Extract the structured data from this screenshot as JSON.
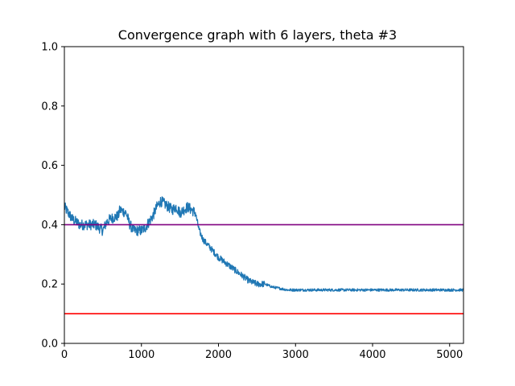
{
  "chart_data": {
    "type": "line",
    "title": "Convergence graph with 6 layers, theta #3",
    "xlabel": "",
    "ylabel": "",
    "xlim": [
      0,
      5180
    ],
    "ylim": [
      0,
      1.0
    ],
    "grid": false,
    "x_ticks": [
      0,
      1000,
      2000,
      3000,
      4000,
      5000
    ],
    "x_tick_labels": [
      "0",
      "1000",
      "2000",
      "3000",
      "4000",
      "5000"
    ],
    "y_ticks": [
      0.0,
      0.2,
      0.4,
      0.6,
      0.8,
      1.0
    ],
    "y_tick_labels": [
      "0.0",
      "0.2",
      "0.4",
      "0.6",
      "0.8",
      "1.0"
    ],
    "series": [
      {
        "color": "#1f77b4",
        "x": [
          0,
          50,
          100,
          200,
          300,
          400,
          500,
          550,
          600,
          700,
          720,
          800,
          850,
          900,
          1000,
          1050,
          1100,
          1150,
          1200,
          1250,
          1300,
          1400,
          1450,
          1500,
          1600,
          1650,
          1700,
          1750,
          1800,
          1900,
          2000,
          2100,
          2200,
          2300,
          2400,
          2500,
          2600,
          2700,
          2800,
          2900,
          3000,
          3500,
          4000,
          4500,
          5000,
          5180
        ],
        "y": [
          0.46,
          0.44,
          0.42,
          0.4,
          0.4,
          0.4,
          0.38,
          0.41,
          0.42,
          0.43,
          0.45,
          0.44,
          0.4,
          0.38,
          0.38,
          0.39,
          0.41,
          0.43,
          0.46,
          0.48,
          0.47,
          0.45,
          0.46,
          0.44,
          0.46,
          0.45,
          0.44,
          0.38,
          0.35,
          0.32,
          0.29,
          0.27,
          0.25,
          0.23,
          0.21,
          0.2,
          0.2,
          0.19,
          0.185,
          0.18,
          0.18,
          0.18,
          0.18,
          0.18,
          0.18,
          0.18
        ],
        "noise": 0.018
      }
    ],
    "hlines": [
      {
        "y": 0.4,
        "color": "#800080"
      },
      {
        "y": 0.1,
        "color": "#ff0000"
      }
    ]
  }
}
